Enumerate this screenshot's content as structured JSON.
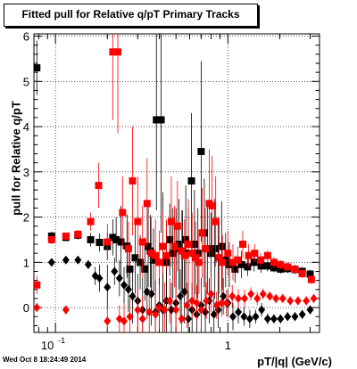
{
  "chart_data": {
    "type": "scatter",
    "title": "Fitted pull for Relative q/pT  Primary Tracks",
    "xlabel": "pT/|q| (GeV/c)",
    "ylabel": "pull for Relative q/pT",
    "xscale": "log",
    "xlim": [
      0.075,
      3.4
    ],
    "ylim": [
      -0.55,
      6.05
    ],
    "grid": true,
    "y_ticks": [
      "0",
      "1",
      "2",
      "3",
      "4",
      "5",
      "6"
    ],
    "x_tick_labels": {
      "base": "10",
      "exp": "-1",
      "one": "1"
    },
    "colors": {
      "black": "#000000",
      "red": "#ff0000"
    },
    "series": [
      {
        "marker": "square",
        "color": "#000000",
        "points": [
          [
            0.078,
            5.3,
            0.6
          ],
          [
            0.095,
            1.58,
            0.1
          ],
          [
            0.115,
            1.55,
            0.08
          ],
          [
            0.135,
            1.6,
            0.1
          ],
          [
            0.16,
            1.5,
            0.15
          ],
          [
            0.18,
            1.44,
            0.2
          ],
          [
            0.2,
            1.35,
            0.3
          ],
          [
            0.215,
            1.55,
            0.4
          ],
          [
            0.225,
            1.5,
            0.5
          ],
          [
            0.24,
            1.45,
            0.8
          ],
          [
            0.26,
            1.36,
            0.7
          ],
          [
            0.27,
            0.85,
            0.5
          ],
          [
            0.29,
            1.1,
            0.8
          ],
          [
            0.31,
            1.0,
            0.6
          ],
          [
            0.33,
            0.85,
            0.7
          ],
          [
            0.345,
            1.35,
            0.9
          ],
          [
            0.355,
            1.25,
            0.8
          ],
          [
            0.37,
            1.05,
            0.7
          ],
          [
            0.385,
            4.15,
            2.0
          ],
          [
            0.41,
            4.15,
            2.5
          ],
          [
            0.42,
            1.35,
            1.2
          ],
          [
            0.44,
            1.0,
            0.9
          ],
          [
            0.46,
            1.5,
            0.8
          ],
          [
            0.48,
            1.2,
            1.0
          ],
          [
            0.5,
            1.3,
            0.9
          ],
          [
            0.52,
            1.4,
            1.0
          ],
          [
            0.545,
            1.25,
            0.9
          ],
          [
            0.57,
            1.5,
            1.2
          ],
          [
            0.59,
            1.2,
            1.0
          ],
          [
            0.615,
            2.8,
            1.5
          ],
          [
            0.64,
            1.4,
            1.2
          ],
          [
            0.67,
            1.2,
            1.0
          ],
          [
            0.7,
            3.45,
            2.0
          ],
          [
            0.73,
            1.65,
            1.2
          ],
          [
            0.76,
            1.3,
            1.0
          ],
          [
            0.8,
            1.2,
            0.9
          ],
          [
            0.84,
            1.3,
            1.1
          ],
          [
            0.88,
            1.1,
            0.9
          ],
          [
            0.92,
            1.35,
            1.0
          ],
          [
            0.97,
            1.05,
            0.6
          ],
          [
            1.02,
            0.95,
            0.5
          ],
          [
            1.1,
            0.85,
            0.3
          ],
          [
            1.2,
            0.95,
            0.3
          ],
          [
            1.3,
            0.9,
            0.2
          ],
          [
            1.42,
            1.0,
            0.2
          ],
          [
            1.56,
            0.92,
            0.15
          ],
          [
            1.7,
            0.92,
            0.12
          ],
          [
            1.85,
            0.88,
            0.1
          ],
          [
            2.02,
            0.85,
            0.1
          ],
          [
            2.22,
            0.86,
            0.1
          ],
          [
            2.45,
            0.84,
            0.1
          ],
          [
            2.7,
            0.8,
            0.1
          ],
          [
            3.0,
            0.74,
            0.1
          ]
        ]
      },
      {
        "marker": "square",
        "color": "#ff0000",
        "points": [
          [
            0.078,
            0.5,
            0.2
          ],
          [
            0.095,
            1.5,
            0.1
          ],
          [
            0.115,
            1.58,
            0.08
          ],
          [
            0.135,
            1.62,
            0.1
          ],
          [
            0.16,
            1.9,
            0.2
          ],
          [
            0.178,
            2.7,
            0.5
          ],
          [
            0.2,
            1.45,
            0.4
          ],
          [
            0.215,
            5.65,
            1.5
          ],
          [
            0.23,
            5.65,
            1.8
          ],
          [
            0.245,
            2.1,
            0.8
          ],
          [
            0.265,
            1.3,
            0.6
          ],
          [
            0.28,
            2.8,
            1.2
          ],
          [
            0.3,
            1.9,
            1.0
          ],
          [
            0.32,
            1.45,
            0.8
          ],
          [
            0.34,
            2.3,
            1.0
          ],
          [
            0.36,
            1.2,
            0.8
          ],
          [
            0.38,
            1.15,
            0.8
          ],
          [
            0.4,
            1.0,
            0.7
          ],
          [
            0.42,
            1.35,
            0.8
          ],
          [
            0.44,
            1.15,
            0.8
          ],
          [
            0.47,
            1.9,
            1.0
          ],
          [
            0.49,
            1.35,
            0.9
          ],
          [
            0.51,
            1.8,
            1.0
          ],
          [
            0.54,
            1.25,
            0.9
          ],
          [
            0.56,
            1.15,
            0.8
          ],
          [
            0.59,
            1.4,
            1.0
          ],
          [
            0.62,
            1.2,
            0.9
          ],
          [
            0.65,
            1.1,
            0.8
          ],
          [
            0.68,
            1.0,
            0.7
          ],
          [
            0.71,
            1.65,
            1.0
          ],
          [
            0.74,
            1.3,
            0.9
          ],
          [
            0.78,
            2.3,
            1.2
          ],
          [
            0.81,
            2.25,
            1.1
          ],
          [
            0.85,
            1.9,
            1.0
          ],
          [
            0.89,
            1.1,
            0.8
          ],
          [
            0.93,
            1.0,
            0.6
          ],
          [
            1.0,
            1.2,
            0.5
          ],
          [
            1.07,
            1.0,
            0.4
          ],
          [
            1.14,
            1.05,
            0.3
          ],
          [
            1.22,
            1.4,
            0.3
          ],
          [
            1.32,
            1.15,
            0.25
          ],
          [
            1.43,
            1.2,
            0.2
          ],
          [
            1.55,
            1.05,
            0.15
          ],
          [
            1.7,
            1.15,
            0.12
          ],
          [
            1.85,
            1.0,
            0.12
          ],
          [
            2.02,
            0.95,
            0.1
          ],
          [
            2.22,
            0.9,
            0.1
          ],
          [
            2.45,
            0.85,
            0.1
          ],
          [
            2.7,
            0.75,
            0.1
          ],
          [
            3.05,
            0.62,
            0.1
          ]
        ]
      },
      {
        "marker": "diamond",
        "color": "#000000",
        "points": [
          [
            0.095,
            1.0,
            0.05
          ],
          [
            0.115,
            1.05,
            0.05
          ],
          [
            0.135,
            1.05,
            0.05
          ],
          [
            0.155,
            0.95,
            0.1
          ],
          [
            0.17,
            0.7,
            0.2
          ],
          [
            0.18,
            0.65,
            0.3
          ],
          [
            0.2,
            0.45,
            0.5
          ],
          [
            0.22,
            0.8,
            0.3
          ],
          [
            0.235,
            0.65,
            0.4
          ],
          [
            0.25,
            0.5,
            0.4
          ],
          [
            0.265,
            0.4,
            0.5
          ],
          [
            0.28,
            0.25,
            0.6
          ],
          [
            0.3,
            0.15,
            0.6
          ],
          [
            0.32,
            -0.05,
            0.7
          ],
          [
            0.34,
            0.35,
            0.6
          ],
          [
            0.36,
            0.3,
            0.7
          ],
          [
            0.38,
            -0.1,
            0.7
          ],
          [
            0.4,
            0.05,
            0.6
          ],
          [
            0.42,
            -0.05,
            0.8
          ],
          [
            0.44,
            0.15,
            0.7
          ],
          [
            0.47,
            -0.05,
            0.6
          ],
          [
            0.5,
            0.1,
            0.7
          ],
          [
            0.53,
            0.25,
            0.6
          ],
          [
            0.56,
            0.35,
            0.7
          ],
          [
            0.59,
            -0.25,
            0.6
          ],
          [
            0.62,
            -0.05,
            0.6
          ],
          [
            0.66,
            -0.15,
            0.5
          ],
          [
            0.7,
            0.05,
            0.6
          ],
          [
            0.74,
            -0.1,
            0.5
          ],
          [
            0.78,
            0.15,
            0.5
          ],
          [
            0.83,
            -0.15,
            0.4
          ],
          [
            0.88,
            -0.05,
            0.4
          ],
          [
            0.94,
            0.25,
            0.4
          ],
          [
            1.0,
            0.1,
            0.3
          ],
          [
            1.07,
            -0.2,
            0.3
          ],
          [
            1.15,
            -0.1,
            0.25
          ],
          [
            1.24,
            -0.2,
            0.2
          ],
          [
            1.34,
            -0.25,
            0.2
          ],
          [
            1.45,
            -0.2,
            0.15
          ],
          [
            1.57,
            -0.05,
            0.15
          ],
          [
            1.7,
            -0.25,
            0.12
          ],
          [
            1.85,
            -0.25,
            0.1
          ],
          [
            2.02,
            -0.25,
            0.1
          ],
          [
            2.22,
            -0.2,
            0.1
          ],
          [
            2.45,
            -0.2,
            0.1
          ],
          [
            2.7,
            -0.15,
            0.1
          ],
          [
            3.0,
            -0.05,
            0.1
          ]
        ]
      },
      {
        "marker": "diamond",
        "color": "#ff0000",
        "points": [
          [
            0.078,
            0.0,
            0.1
          ],
          [
            0.115,
            -0.05,
            0.1
          ],
          [
            0.2,
            -0.3,
            0.3
          ],
          [
            0.235,
            -0.25,
            0.3
          ],
          [
            0.25,
            -0.3,
            0.4
          ],
          [
            0.27,
            -0.2,
            0.4
          ],
          [
            0.3,
            -0.05,
            0.5
          ],
          [
            0.32,
            -0.25,
            0.5
          ],
          [
            0.35,
            -0.1,
            0.5
          ],
          [
            0.38,
            -0.15,
            0.5
          ],
          [
            0.4,
            0.0,
            0.5
          ],
          [
            0.43,
            -0.05,
            0.6
          ],
          [
            0.46,
            0.15,
            0.5
          ],
          [
            0.5,
            -0.05,
            0.5
          ],
          [
            0.54,
            -0.25,
            0.5
          ],
          [
            0.58,
            0.05,
            0.5
          ],
          [
            0.62,
            0.15,
            0.4
          ],
          [
            0.66,
            0.1,
            0.4
          ],
          [
            0.7,
            -0.05,
            0.5
          ],
          [
            0.75,
            0.15,
            0.4
          ],
          [
            0.8,
            0.3,
            0.4
          ],
          [
            0.86,
            0.05,
            0.3
          ],
          [
            0.92,
            0.1,
            0.3
          ],
          [
            0.98,
            0.1,
            0.3
          ],
          [
            1.06,
            0.25,
            0.25
          ],
          [
            1.15,
            0.2,
            0.2
          ],
          [
            1.25,
            0.2,
            0.2
          ],
          [
            1.36,
            0.3,
            0.15
          ],
          [
            1.48,
            0.2,
            0.15
          ],
          [
            1.6,
            0.3,
            0.12
          ],
          [
            1.75,
            0.25,
            0.1
          ],
          [
            1.9,
            0.2,
            0.1
          ],
          [
            2.08,
            0.2,
            0.1
          ],
          [
            2.3,
            0.15,
            0.1
          ],
          [
            2.55,
            0.15,
            0.1
          ],
          [
            2.85,
            0.15,
            0.1
          ],
          [
            3.15,
            0.2,
            0.1
          ]
        ]
      }
    ]
  },
  "timestamp": "Wed Oct  8 18:24:49 2014"
}
